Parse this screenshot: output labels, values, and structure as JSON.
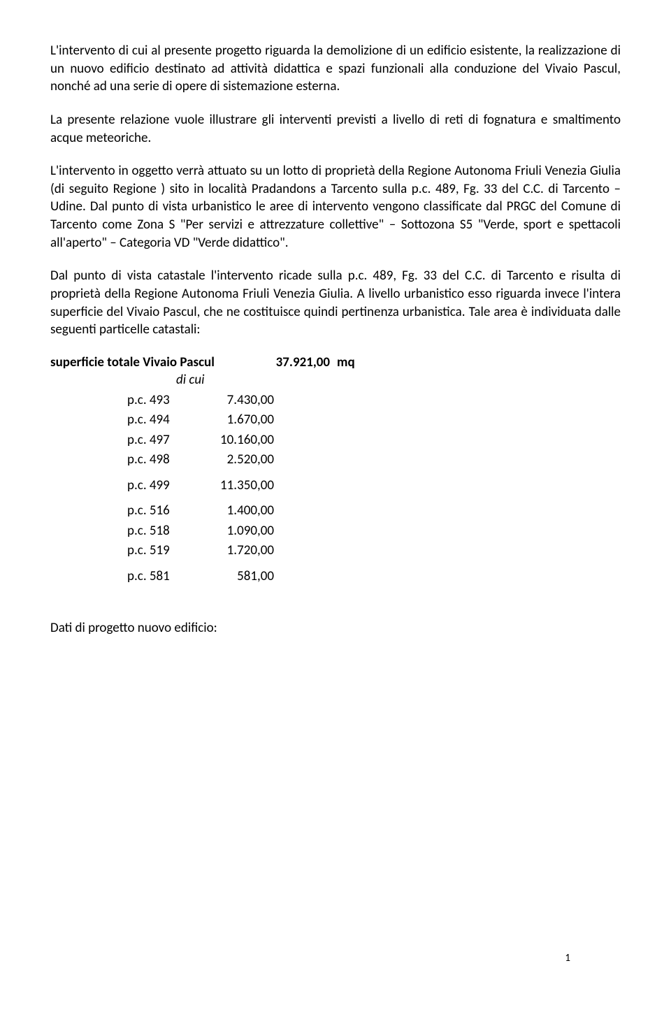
{
  "paragraphs": {
    "p1": "L'intervento di cui al presente progetto riguarda la demolizione di un edificio esistente, la realizzazione di un nuovo edificio destinato ad attività didattica e spazi funzionali alla conduzione del Vivaio Pascul, nonché ad una serie di opere di sistemazione esterna.",
    "p2": "La presente relazione vuole illustrare gli interventi previsti a livello di reti di fognatura e smaltimento acque meteoriche.",
    "p3": "L'intervento in oggetto verrà attuato su un lotto di proprietà della Regione Autonoma Friuli Venezia Giulia (di seguito Regione ) sito in località Pradandons a Tarcento sulla p.c. 489, Fg. 33 del C.C. di Tarcento – Udine. Dal punto di vista urbanistico le aree di intervento vengono classificate dal PRGC del Comune di Tarcento come Zona S \"Per servizi e attrezzature collettive\" – Sottozona S5 \"Verde, sport e spettacoli all'aperto\" – Categoria VD \"Verde didattico\".",
    "p4": "Dal punto di vista catastale l'intervento ricade sulla p.c. 489, Fg. 33 del C.C. di Tarcento e risulta di proprietà della Regione Autonoma Friuli Venezia Giulia. A livello urbanistico esso riguarda invece l'intera superficie del Vivaio Pascul, che ne costituisce quindi pertinenza urbanistica. Tale area è individuata dalle seguenti particelle catastali:"
  },
  "totals": {
    "label": "superficie totale Vivaio Pascul",
    "value": "37.921,00",
    "unit": "mq",
    "dicui": "di cui"
  },
  "parcels_group1": [
    {
      "label": "p.c. 493",
      "value": "7.430,00"
    },
    {
      "label": "p.c. 494",
      "value": "1.670,00"
    },
    {
      "label": "p.c. 497",
      "value": "10.160,00"
    },
    {
      "label": "p.c. 498",
      "value": "2.520,00"
    }
  ],
  "parcels_group2": [
    {
      "label": "p.c. 499",
      "value": "11.350,00"
    }
  ],
  "parcels_group3": [
    {
      "label": "p.c. 516",
      "value": "1.400,00"
    },
    {
      "label": "p.c. 518",
      "value": "1.090,00"
    },
    {
      "label": "p.c. 519",
      "value": "1.720,00"
    }
  ],
  "parcels_group4": [
    {
      "label": "p.c. 581",
      "value": "581,00"
    }
  ],
  "bottom_note": "Dati di progetto nuovo edificio:",
  "page_number": "1"
}
